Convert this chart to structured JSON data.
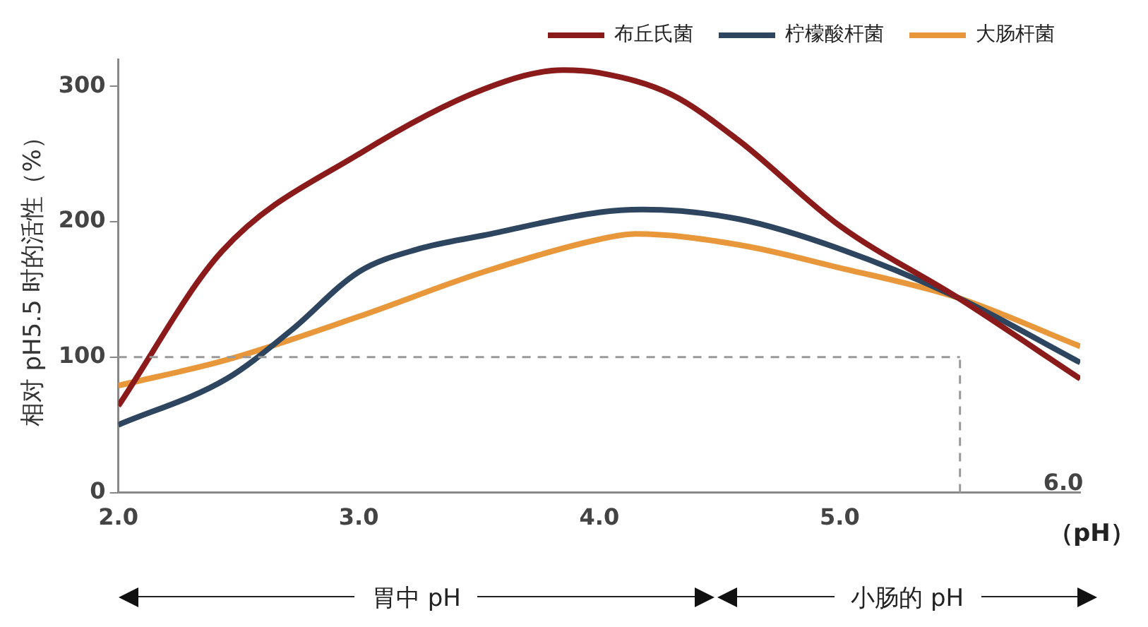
{
  "chart_data": {
    "type": "line",
    "ylabel": "相对 pH5.5 时的活性（%）",
    "xlabel": "（pH）",
    "xlim": [
      2,
      6
    ],
    "xticks": [
      {
        "value": 2,
        "label": "2.0"
      },
      {
        "value": 3,
        "label": "3.0"
      },
      {
        "value": 4,
        "label": "4.0"
      },
      {
        "value": 5,
        "label": "5.0"
      }
    ],
    "ylim": [
      0,
      320
    ],
    "yticks": [
      0,
      100,
      200,
      300
    ],
    "grid": false,
    "legend": "top right",
    "marker": "none",
    "line_style": "solid",
    "ref_lines": [
      {
        "axis": "y",
        "value": 100,
        "color": "#999999",
        "line_style": "dashed"
      },
      {
        "axis": "x",
        "value": 5.5,
        "color": "#999999",
        "line_style": "dashed"
      }
    ],
    "annotations": [
      "胃中 pH",
      "小肠的 pH",
      "6.0"
    ],
    "series": [
      {
        "name": "布丘氏菌",
        "color": "#8b1a1a",
        "x": [
          2.0,
          2.43,
          3.0,
          3.52,
          3.85,
          4.0,
          4.3,
          4.58,
          5.0,
          5.49,
          6.0
        ],
        "values": [
          64,
          178,
          250,
          298,
          312,
          310,
          294,
          260,
          197,
          144,
          84
        ]
      },
      {
        "name": "柠檬酸杆菌",
        "color": "#2e4560",
        "x": [
          2.0,
          2.45,
          2.72,
          3.0,
          3.25,
          3.52,
          4.0,
          4.18,
          4.58,
          5.0,
          5.49,
          6.0
        ],
        "values": [
          50,
          84,
          120,
          163,
          180,
          190,
          207,
          209,
          202,
          180,
          144,
          96
        ]
      },
      {
        "name": "大肠杆菌",
        "color": "#e8973a",
        "x": [
          2.0,
          2.45,
          3.0,
          3.52,
          4.0,
          4.15,
          4.58,
          5.0,
          5.49,
          6.0
        ],
        "values": [
          79,
          98,
          130,
          163,
          187,
          191,
          183,
          166,
          144,
          108
        ]
      }
    ]
  }
}
